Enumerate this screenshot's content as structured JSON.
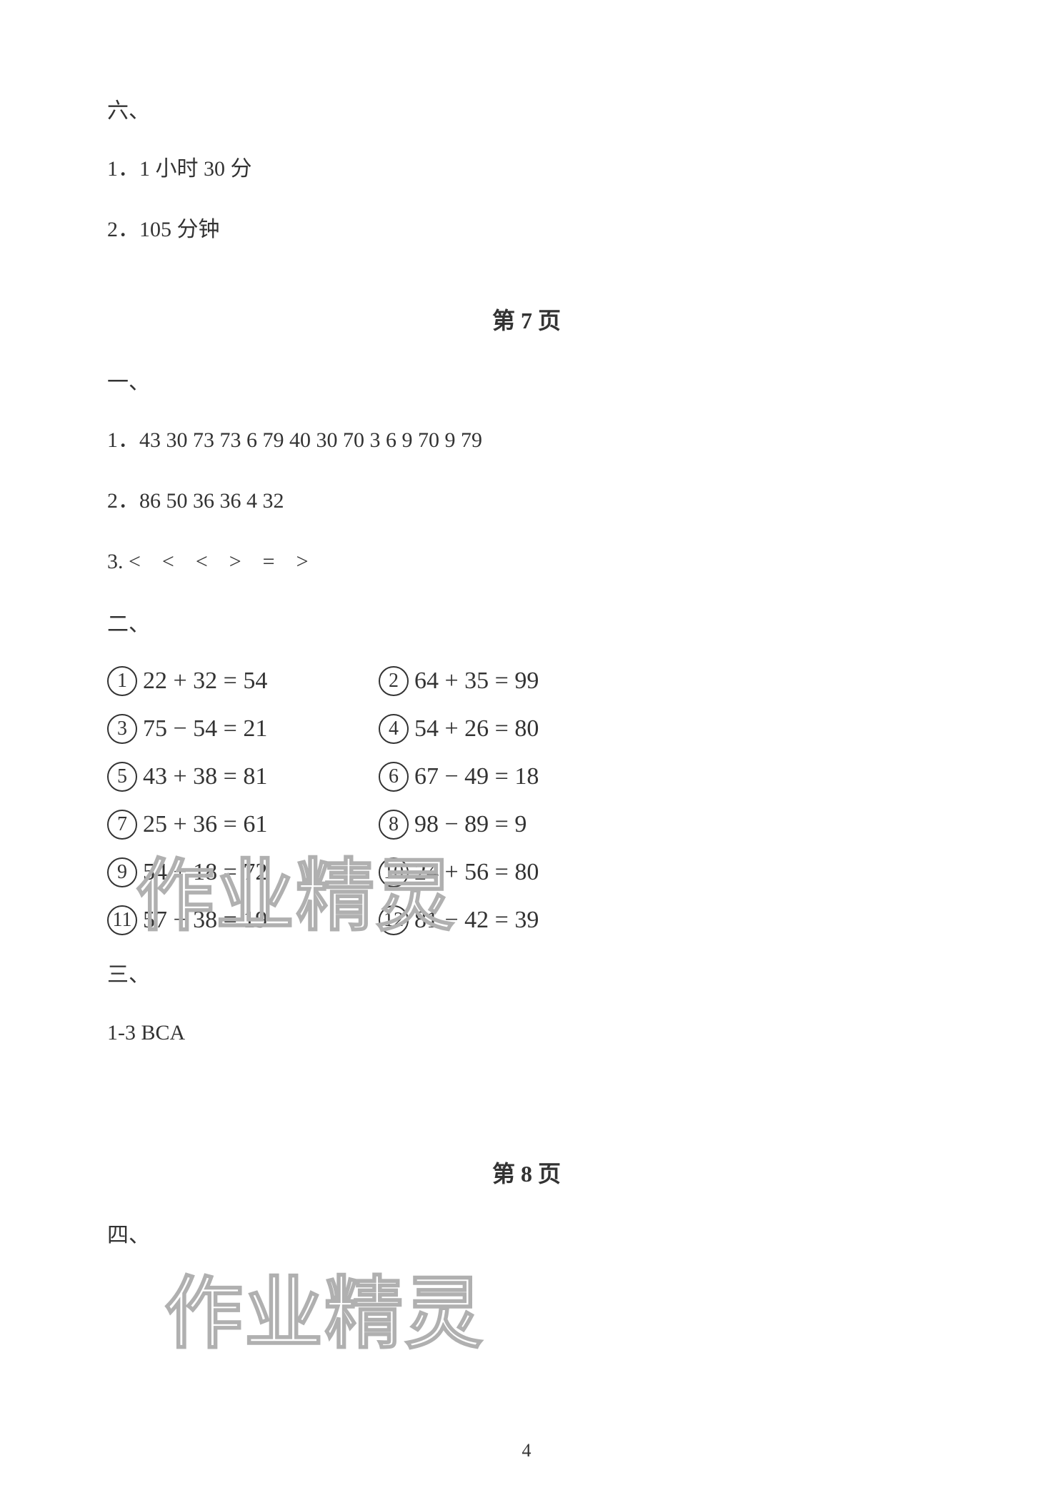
{
  "section_six": {
    "heading": "六、",
    "items": [
      "1．1 小时 30 分",
      "2．105 分钟"
    ]
  },
  "page7_title": "第 7 页",
  "section_one": {
    "heading": "一、",
    "items": [
      "1．43 30 73 73 6 79 40 30 70 3 6 9 70 9 79",
      "2．86 50 36 36 4 32",
      "3. <　<　<　>　=　>"
    ]
  },
  "section_two": {
    "heading": "二、",
    "equations": [
      {
        "num": "1",
        "expr": "22 + 32 = 54"
      },
      {
        "num": "2",
        "expr": "64 + 35 = 99"
      },
      {
        "num": "3",
        "expr": "75 − 54 = 21"
      },
      {
        "num": "4",
        "expr": "54 + 26 = 80"
      },
      {
        "num": "5",
        "expr": "43 + 38 = 81"
      },
      {
        "num": "6",
        "expr": "67 − 49 = 18"
      },
      {
        "num": "7",
        "expr": "25 + 36 = 61"
      },
      {
        "num": "8",
        "expr": "98 − 89 = 9"
      },
      {
        "num": "9",
        "expr": "54 + 18 = 72"
      },
      {
        "num": "10",
        "expr": "24 + 56 = 80"
      },
      {
        "num": "11",
        "expr": "57 − 38 = 19"
      },
      {
        "num": "12",
        "expr": "81 − 42 = 39"
      }
    ]
  },
  "section_three": {
    "heading": "三、",
    "items": [
      "1-3 BCA"
    ]
  },
  "page8_title": "第 8 页",
  "section_four": {
    "heading": "四、"
  },
  "watermark_text": "作业精灵",
  "page_number": "4"
}
